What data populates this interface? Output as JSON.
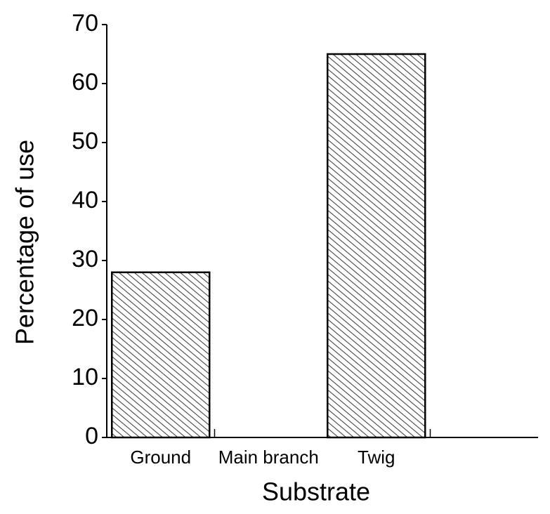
{
  "chart_data": {
    "type": "bar",
    "x_label": "Substrate",
    "y_label": "Percentage of use",
    "categories": [
      "Ground",
      "Main branch",
      "Twig"
    ],
    "values": [
      28,
      0,
      65
    ],
    "ylim": [
      0,
      70
    ],
    "yticks": [
      0,
      10,
      20,
      30,
      40,
      50,
      60,
      70
    ]
  }
}
